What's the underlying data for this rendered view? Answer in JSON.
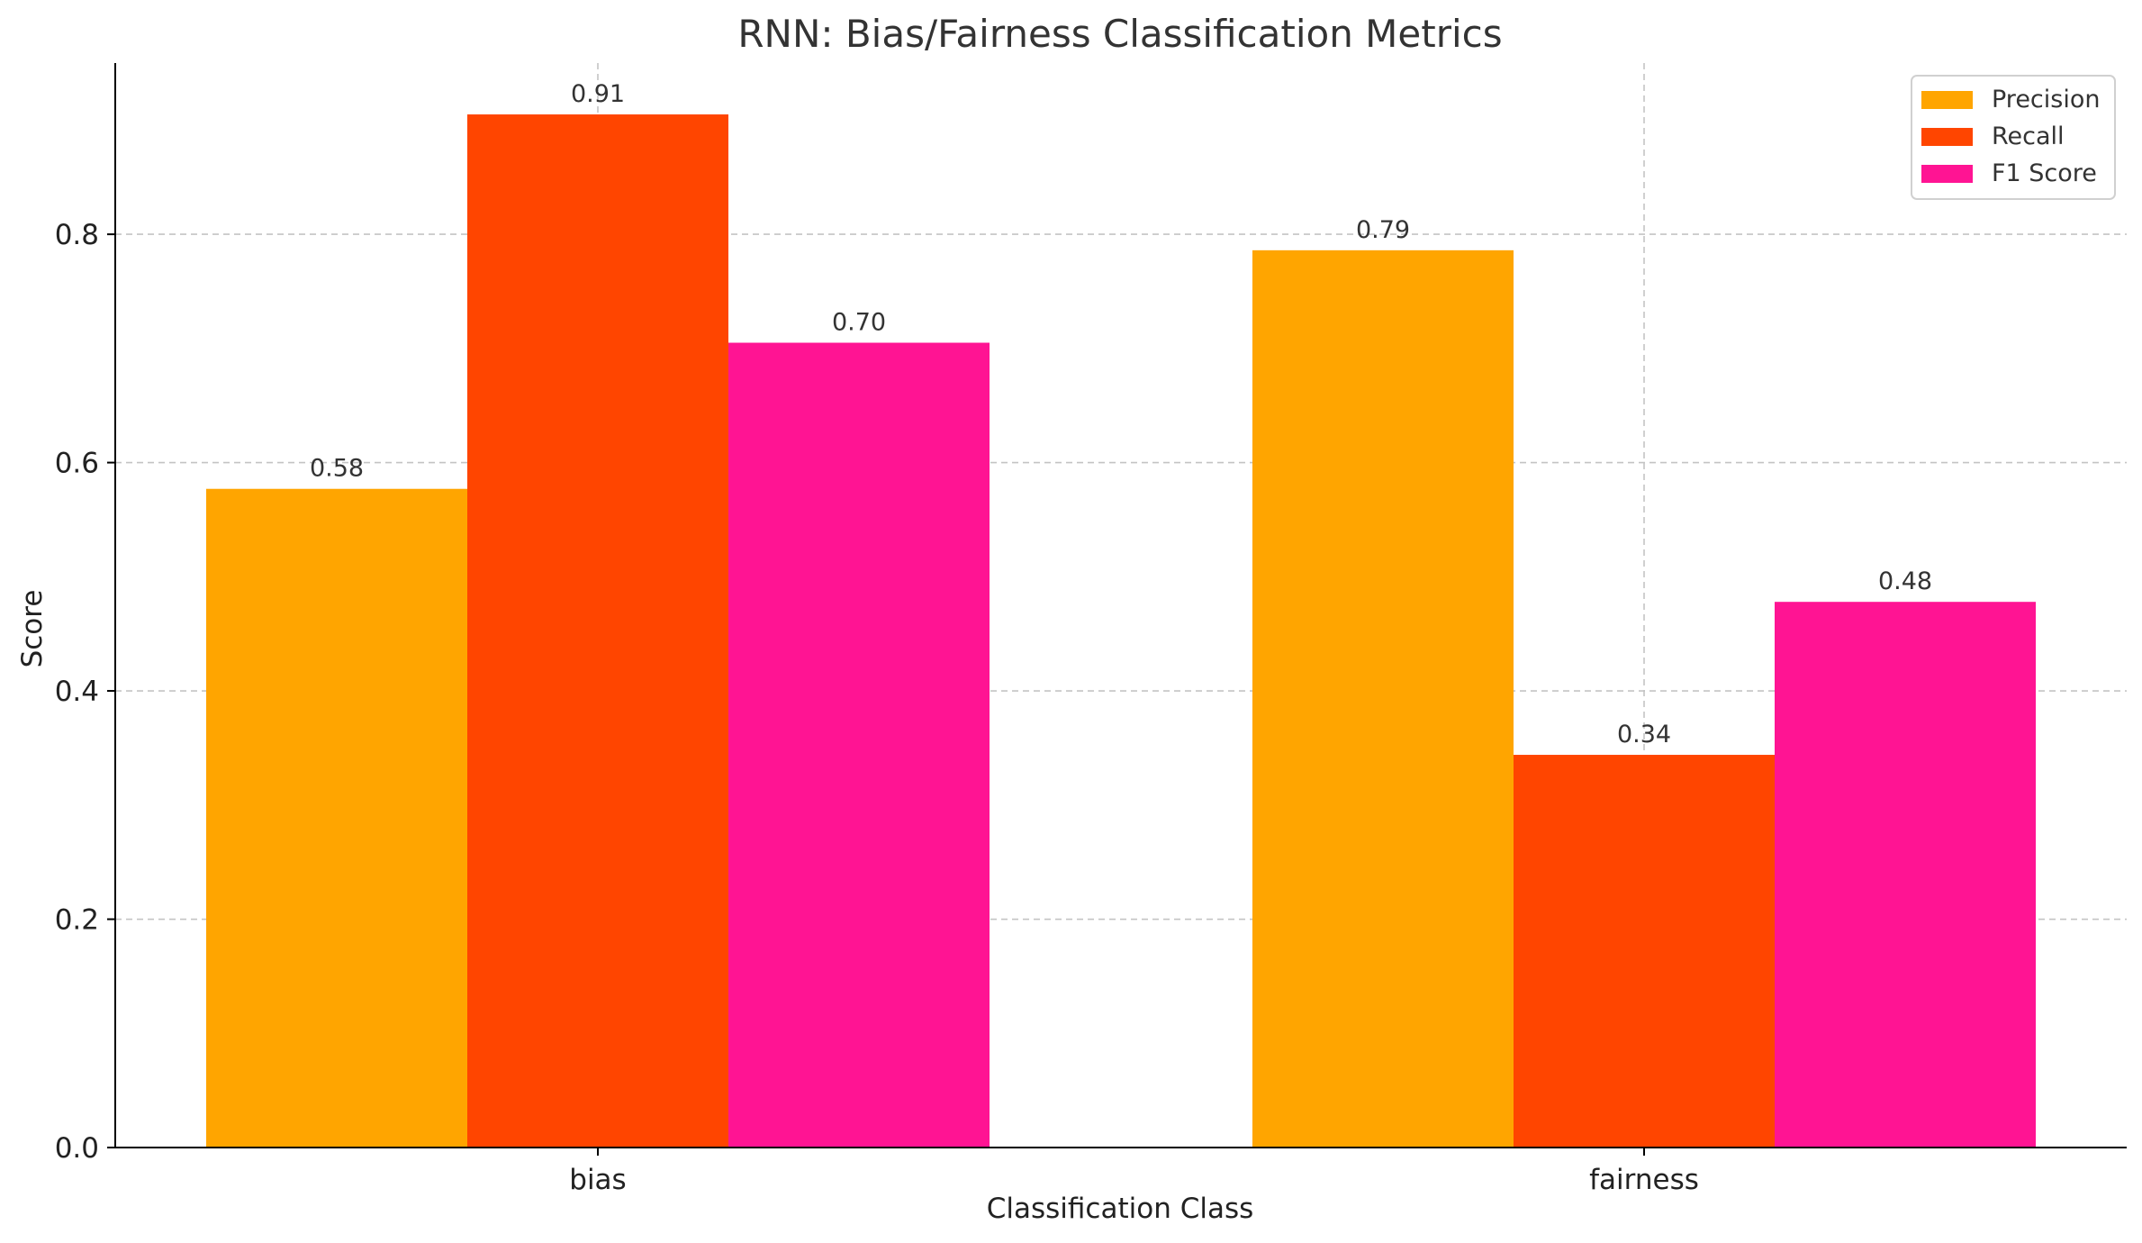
{
  "chart_data": {
    "type": "bar",
    "title": "RNN: Bias/Fairness Classification Metrics",
    "xlabel": "Classification Class",
    "ylabel": "Score",
    "categories": [
      "bias",
      "fairness"
    ],
    "series": [
      {
        "name": "Precision",
        "color": "#FFA500",
        "values": [
          0.577,
          0.786
        ],
        "labels": [
          "0.58",
          "0.79"
        ]
      },
      {
        "name": "Recall",
        "color": "#FF4500",
        "values": [
          0.905,
          0.344
        ],
        "labels": [
          "0.91",
          "0.34"
        ]
      },
      {
        "name": "F1 Score",
        "color": "#FF1493",
        "values": [
          0.705,
          0.478
        ],
        "labels": [
          "0.70",
          "0.48"
        ]
      }
    ],
    "ylim": [
      0,
      0.95
    ],
    "yticks": [
      0.0,
      0.2,
      0.4,
      0.6,
      0.8
    ],
    "ytick_labels": [
      "0.0",
      "0.2",
      "0.4",
      "0.6",
      "0.8"
    ],
    "grid": true,
    "legend_position": "top-right"
  }
}
